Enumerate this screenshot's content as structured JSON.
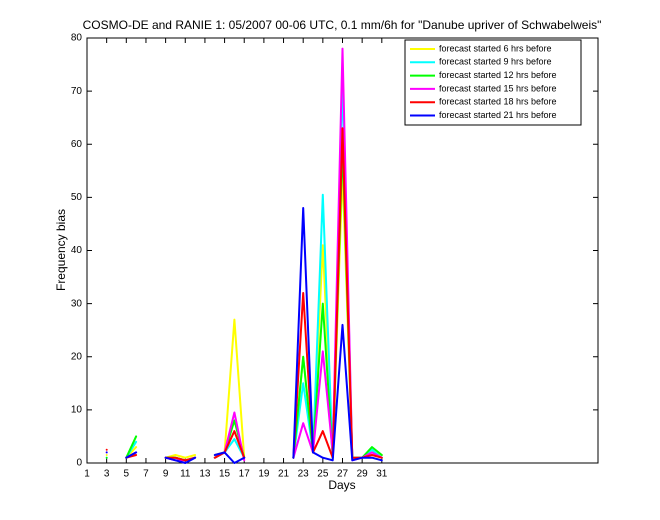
{
  "chart_data": {
    "type": "line",
    "title": "COSMO-DE and RANIE 1: 05/2007 00-06 UTC, 0.1 mm/6h for \"Danube upriver of Schwabelweis\"",
    "xlabel": "Days",
    "ylabel": "Frequency bias",
    "x": [
      3,
      4,
      5,
      6,
      7,
      9,
      10,
      11,
      12,
      13,
      14,
      15,
      16,
      17,
      18,
      22,
      23,
      24,
      25,
      26,
      27,
      28,
      29,
      30,
      31
    ],
    "series": [
      {
        "name": "forecast started 6 hrs before",
        "color": "#ffff00",
        "values": [
          1.5,
          null,
          1,
          3,
          null,
          1,
          1.5,
          1,
          1.5,
          null,
          1.5,
          2,
          27,
          1,
          null,
          1,
          20,
          2,
          41,
          1,
          55,
          1,
          1,
          2,
          1.5
        ]
      },
      {
        "name": "forecast started 9 hrs before",
        "color": "#00ffff",
        "values": [
          1,
          null,
          1,
          4,
          null,
          1,
          1,
          0.5,
          1,
          null,
          1,
          2,
          4.5,
          1,
          null,
          1,
          15,
          2,
          50.5,
          1,
          72,
          1,
          1,
          2.5,
          1
        ]
      },
      {
        "name": "forecast started 12 hrs before",
        "color": "#00ff00",
        "values": [
          1,
          null,
          1,
          5,
          null,
          1,
          1,
          0.5,
          1,
          null,
          1,
          2,
          8,
          1,
          null,
          1,
          20,
          2,
          30,
          1,
          60,
          1,
          1,
          3,
          1.5
        ]
      },
      {
        "name": "forecast started 15 hrs before",
        "color": "#ff00ff",
        "values": [
          2,
          null,
          1,
          2,
          null,
          1,
          0.5,
          0.5,
          1,
          null,
          1,
          2,
          9.5,
          0.5,
          null,
          1,
          7.5,
          2,
          21,
          2,
          78,
          0.5,
          1,
          2,
          1
        ]
      },
      {
        "name": "forecast started 18 hrs before",
        "color": "#ff0000",
        "values": [
          2.5,
          null,
          1,
          1.5,
          null,
          1,
          1,
          0.5,
          1,
          null,
          1,
          2,
          6,
          1,
          null,
          1,
          32,
          2,
          6,
          1,
          63,
          1,
          1,
          1.5,
          1
        ]
      },
      {
        "name": "forecast started 21 hrs before",
        "color": "#0000ff",
        "values": [
          2,
          null,
          1,
          2,
          null,
          1,
          0.5,
          0,
          1,
          null,
          1.5,
          2,
          0,
          1,
          null,
          1,
          48,
          2,
          1,
          0.5,
          26,
          0.5,
          1,
          1,
          0.5
        ]
      }
    ],
    "xlim": [
      1,
      53
    ],
    "xticks": [
      1,
      3,
      5,
      7,
      9,
      11,
      13,
      15,
      17,
      19,
      21,
      23,
      25,
      27,
      29,
      31
    ],
    "ylim": [
      0,
      80
    ],
    "yticks": [
      0,
      10,
      20,
      30,
      40,
      50,
      60,
      70,
      80
    ],
    "legend": "upper right"
  }
}
